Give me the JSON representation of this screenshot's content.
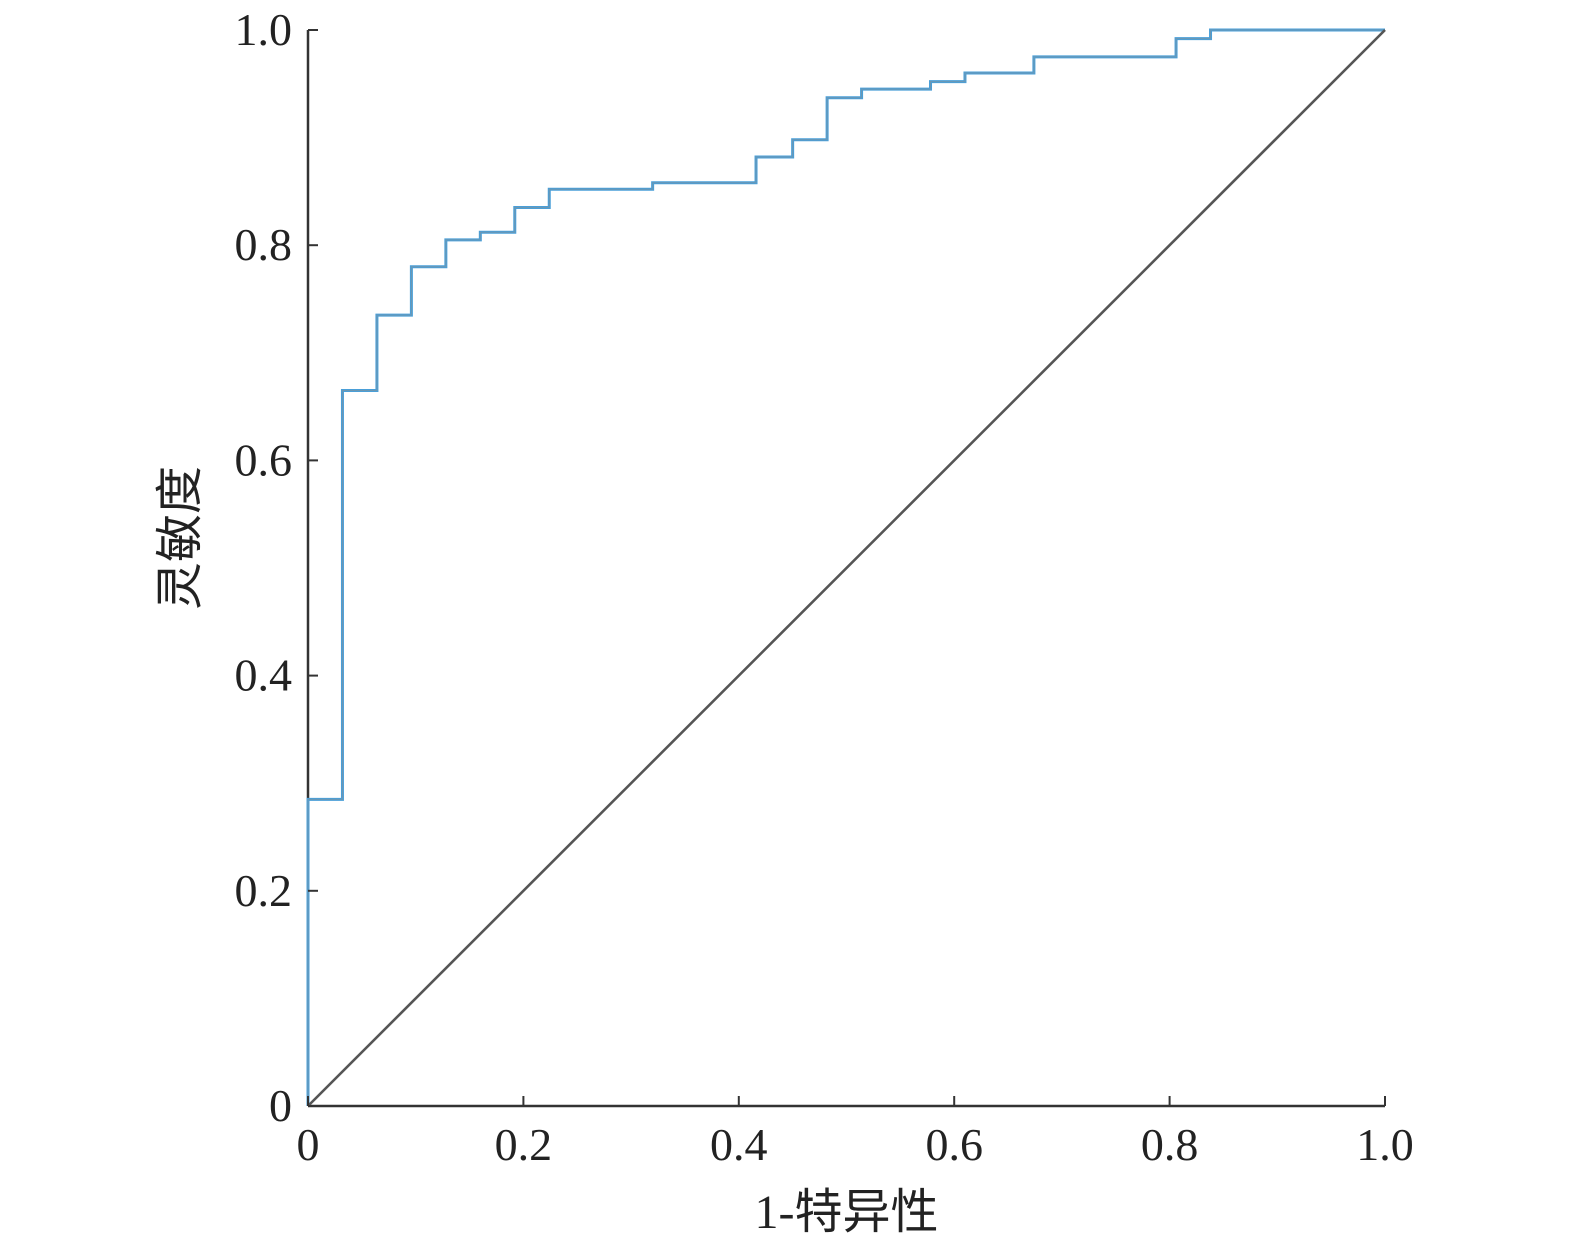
{
  "chart_data": {
    "type": "line",
    "title": "",
    "xlabel": "1-特异性",
    "ylabel": "灵敏度",
    "xlim": [
      0,
      1.0
    ],
    "ylim": [
      0,
      1.0
    ],
    "x_ticks": [
      {
        "value": 0,
        "label": "0"
      },
      {
        "value": 0.2,
        "label": "0.2"
      },
      {
        "value": 0.4,
        "label": "0.4"
      },
      {
        "value": 0.6,
        "label": "0.6"
      },
      {
        "value": 0.8,
        "label": "0.8"
      },
      {
        "value": 1.0,
        "label": "1.0"
      }
    ],
    "y_ticks": [
      {
        "value": 0,
        "label": "0"
      },
      {
        "value": 0.2,
        "label": "0.2"
      },
      {
        "value": 0.4,
        "label": "0.4"
      },
      {
        "value": 0.6,
        "label": "0.6"
      },
      {
        "value": 0.8,
        "label": "0.8"
      },
      {
        "value": 1.0,
        "label": "1.0"
      }
    ],
    "grid": false,
    "legend": "none",
    "series": [
      {
        "kind": "roc-step",
        "color": "#4a9fd8",
        "points": [
          [
            0.0,
            0.0
          ],
          [
            0.0,
            0.285
          ],
          [
            0.032,
            0.285
          ],
          [
            0.032,
            0.665
          ],
          [
            0.064,
            0.665
          ],
          [
            0.064,
            0.735
          ],
          [
            0.096,
            0.735
          ],
          [
            0.096,
            0.78
          ],
          [
            0.128,
            0.78
          ],
          [
            0.128,
            0.805
          ],
          [
            0.16,
            0.805
          ],
          [
            0.16,
            0.812
          ],
          [
            0.192,
            0.812
          ],
          [
            0.192,
            0.835
          ],
          [
            0.224,
            0.835
          ],
          [
            0.224,
            0.852
          ],
          [
            0.32,
            0.852
          ],
          [
            0.32,
            0.858
          ],
          [
            0.416,
            0.858
          ],
          [
            0.416,
            0.882
          ],
          [
            0.45,
            0.882
          ],
          [
            0.45,
            0.898
          ],
          [
            0.482,
            0.898
          ],
          [
            0.482,
            0.937
          ],
          [
            0.514,
            0.937
          ],
          [
            0.514,
            0.945
          ],
          [
            0.578,
            0.945
          ],
          [
            0.578,
            0.952
          ],
          [
            0.61,
            0.952
          ],
          [
            0.61,
            0.96
          ],
          [
            0.674,
            0.96
          ],
          [
            0.674,
            0.975
          ],
          [
            0.806,
            0.975
          ],
          [
            0.806,
            0.992
          ],
          [
            0.838,
            0.992
          ],
          [
            0.838,
            1.0
          ],
          [
            1.0,
            1.0
          ]
        ]
      },
      {
        "kind": "reference-diagonal",
        "color": "#555555",
        "points": [
          [
            0.0,
            0.0
          ],
          [
            1.0,
            1.0
          ]
        ]
      }
    ],
    "axis_color": "#333333"
  }
}
